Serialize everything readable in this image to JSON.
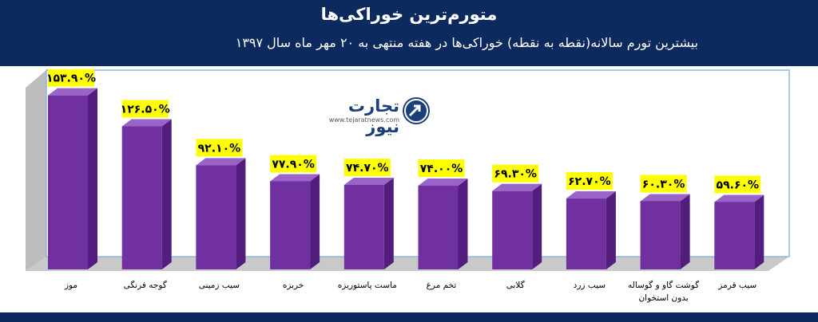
{
  "header": {
    "title": "متورم‌ترین خوراکی‌ها",
    "subtitle": "بیشترین تورم سالانه(نقطه به نقطه) خوراکی‌ها در هفته منتهی به ۲۰ مهر ماه سال ۱۳۹۷"
  },
  "logo": {
    "text": "تجارت نیوز",
    "sub": "www.tejaratnews.com"
  },
  "colors": {
    "bar_front": "#7030a0",
    "bar_side": "#521d7c",
    "bar_top": "#9a63c7",
    "label_bg": "#ffff00",
    "header_bg": "#0d2a5e",
    "floor": "#c9c9c9",
    "back_wall": "#bdbdbd"
  },
  "chart_data": {
    "type": "bar",
    "categories": [
      "موز",
      "گوجه فرنگی",
      "سیب زمینی",
      "خربزه",
      "ماست پاستوریزه",
      "تخم مرغ",
      "گلابی",
      "سیب زرد",
      "گوشت گاو و گوساله بدون استخوان",
      "سیب قرمز"
    ],
    "values": [
      153.9,
      126.5,
      92.1,
      77.9,
      74.7,
      74.0,
      69.3,
      62.7,
      60.3,
      59.6
    ],
    "labels": [
      "۱۵۳.۹۰%",
      "۱۲۶.۵۰%",
      "۹۲.۱۰%",
      "۷۷.۹۰%",
      "۷۴.۷۰%",
      "۷۴.۰۰%",
      "۶۹.۳۰%",
      "۶۲.۷۰%",
      "۶۰.۳۰%",
      "۵۹.۶۰%"
    ],
    "ylim": [
      0,
      160
    ],
    "grid": false,
    "legend": "none"
  }
}
